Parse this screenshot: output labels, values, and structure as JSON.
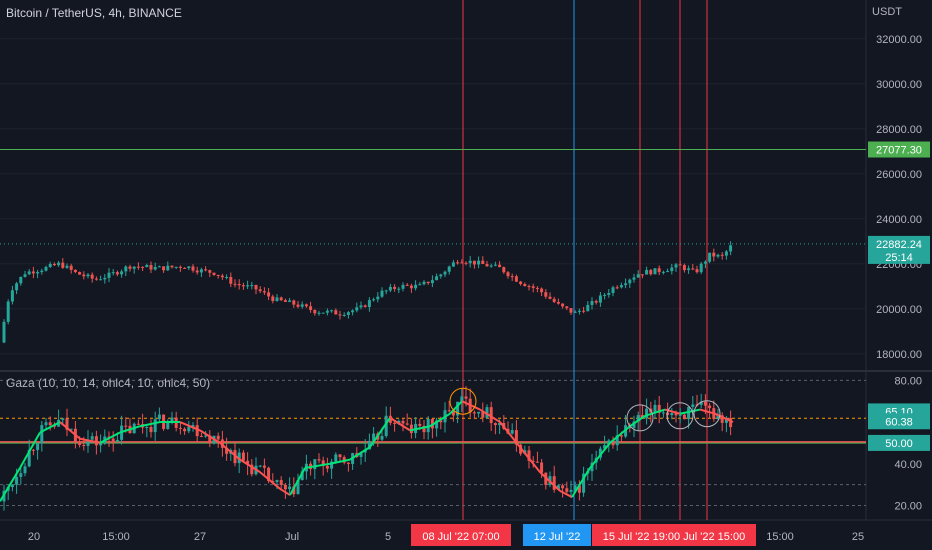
{
  "chart_data": [
    {
      "type": "candlestick",
      "title": "Bitcoin / TetherUS, 4h, BINANCE",
      "currency": "USDT",
      "price_axis_ticks": [
        "32000.00",
        "30000.00",
        "28000.00",
        "26000.00",
        "24000.00",
        "22000.00",
        "20000.00",
        "18000.00"
      ],
      "ylim": [
        17500,
        33500
      ],
      "horizontal_level": {
        "value": 27077.3,
        "label": "27077.30",
        "color": "#4caf50"
      },
      "last_price": {
        "value": 22882.24,
        "label": "22882.24",
        "countdown": "25:14",
        "color": "#26a69a"
      },
      "approx_close_path": [
        {
          "x": 0,
          "y": 18500
        },
        {
          "x": 10,
          "y": 20800
        },
        {
          "x": 25,
          "y": 21600
        },
        {
          "x": 45,
          "y": 21800
        },
        {
          "x": 60,
          "y": 22000
        },
        {
          "x": 75,
          "y": 21600
        },
        {
          "x": 95,
          "y": 21300
        },
        {
          "x": 110,
          "y": 21500
        },
        {
          "x": 130,
          "y": 21900
        },
        {
          "x": 160,
          "y": 21800
        },
        {
          "x": 185,
          "y": 21900
        },
        {
          "x": 200,
          "y": 21700
        },
        {
          "x": 215,
          "y": 21600
        },
        {
          "x": 235,
          "y": 21100
        },
        {
          "x": 255,
          "y": 20900
        },
        {
          "x": 275,
          "y": 20400
        },
        {
          "x": 295,
          "y": 20200
        },
        {
          "x": 315,
          "y": 19900
        },
        {
          "x": 340,
          "y": 19800
        },
        {
          "x": 360,
          "y": 20000
        },
        {
          "x": 380,
          "y": 20700
        },
        {
          "x": 400,
          "y": 21000
        },
        {
          "x": 420,
          "y": 21000
        },
        {
          "x": 440,
          "y": 21500
        },
        {
          "x": 458,
          "y": 22200
        },
        {
          "x": 480,
          "y": 22000
        },
        {
          "x": 500,
          "y": 21800
        },
        {
          "x": 520,
          "y": 21200
        },
        {
          "x": 540,
          "y": 20800
        },
        {
          "x": 560,
          "y": 20100
        },
        {
          "x": 575,
          "y": 19800
        },
        {
          "x": 595,
          "y": 20300
        },
        {
          "x": 615,
          "y": 21000
        },
        {
          "x": 640,
          "y": 21600
        },
        {
          "x": 660,
          "y": 21700
        },
        {
          "x": 680,
          "y": 21900
        },
        {
          "x": 695,
          "y": 21600
        },
        {
          "x": 710,
          "y": 22400
        },
        {
          "x": 722,
          "y": 22300
        },
        {
          "x": 733,
          "y": 22882
        }
      ],
      "time_axis_ticks": [
        "20",
        "15:00",
        "27",
        "Jul",
        "5",
        "15:00",
        "25"
      ],
      "time_axis_highlights": [
        {
          "label": "08 Jul '22   07:00",
          "color": "#f23645"
        },
        {
          "label": "12 Jul '22",
          "color": "#2196f3"
        },
        {
          "label": "15 Jul '22   19:00   Jul '22   15:00",
          "color": "#f23645"
        }
      ]
    },
    {
      "type": "line",
      "title": "Gaza (10, 10, 14, ohlc4, 10, ohlc4, 50)",
      "axis_ticks": [
        "80.00",
        "60.00",
        "40.00",
        "20.00"
      ],
      "ylim": [
        14,
        84
      ],
      "value_labels": [
        {
          "value": 65.1,
          "label": "65.10",
          "color": "#26a69a"
        },
        {
          "value": 60.38,
          "label": "60.38",
          "color": "#26a69a"
        },
        {
          "value": 50.0,
          "label": "50.00",
          "color": "#26a69a"
        }
      ],
      "levels": [
        80,
        61.8,
        50,
        30,
        20
      ],
      "approx_oscillator_path": [
        {
          "x": 0,
          "y": 22
        },
        {
          "x": 20,
          "y": 38
        },
        {
          "x": 40,
          "y": 55
        },
        {
          "x": 60,
          "y": 60
        },
        {
          "x": 80,
          "y": 52
        },
        {
          "x": 100,
          "y": 50
        },
        {
          "x": 120,
          "y": 55
        },
        {
          "x": 140,
          "y": 58
        },
        {
          "x": 160,
          "y": 60
        },
        {
          "x": 180,
          "y": 60
        },
        {
          "x": 200,
          "y": 56
        },
        {
          "x": 220,
          "y": 50
        },
        {
          "x": 240,
          "y": 42
        },
        {
          "x": 260,
          "y": 36
        },
        {
          "x": 280,
          "y": 28
        },
        {
          "x": 290,
          "y": 25
        },
        {
          "x": 305,
          "y": 38
        },
        {
          "x": 330,
          "y": 40
        },
        {
          "x": 350,
          "y": 42
        },
        {
          "x": 370,
          "y": 48
        },
        {
          "x": 390,
          "y": 62
        },
        {
          "x": 410,
          "y": 56
        },
        {
          "x": 430,
          "y": 58
        },
        {
          "x": 450,
          "y": 64
        },
        {
          "x": 462,
          "y": 70
        },
        {
          "x": 480,
          "y": 66
        },
        {
          "x": 500,
          "y": 60
        },
        {
          "x": 520,
          "y": 48
        },
        {
          "x": 540,
          "y": 36
        },
        {
          "x": 560,
          "y": 27
        },
        {
          "x": 572,
          "y": 24
        },
        {
          "x": 590,
          "y": 38
        },
        {
          "x": 610,
          "y": 50
        },
        {
          "x": 630,
          "y": 58
        },
        {
          "x": 645,
          "y": 63
        },
        {
          "x": 665,
          "y": 66
        },
        {
          "x": 680,
          "y": 64
        },
        {
          "x": 700,
          "y": 66
        },
        {
          "x": 715,
          "y": 64
        },
        {
          "x": 733,
          "y": 60
        }
      ]
    }
  ]
}
